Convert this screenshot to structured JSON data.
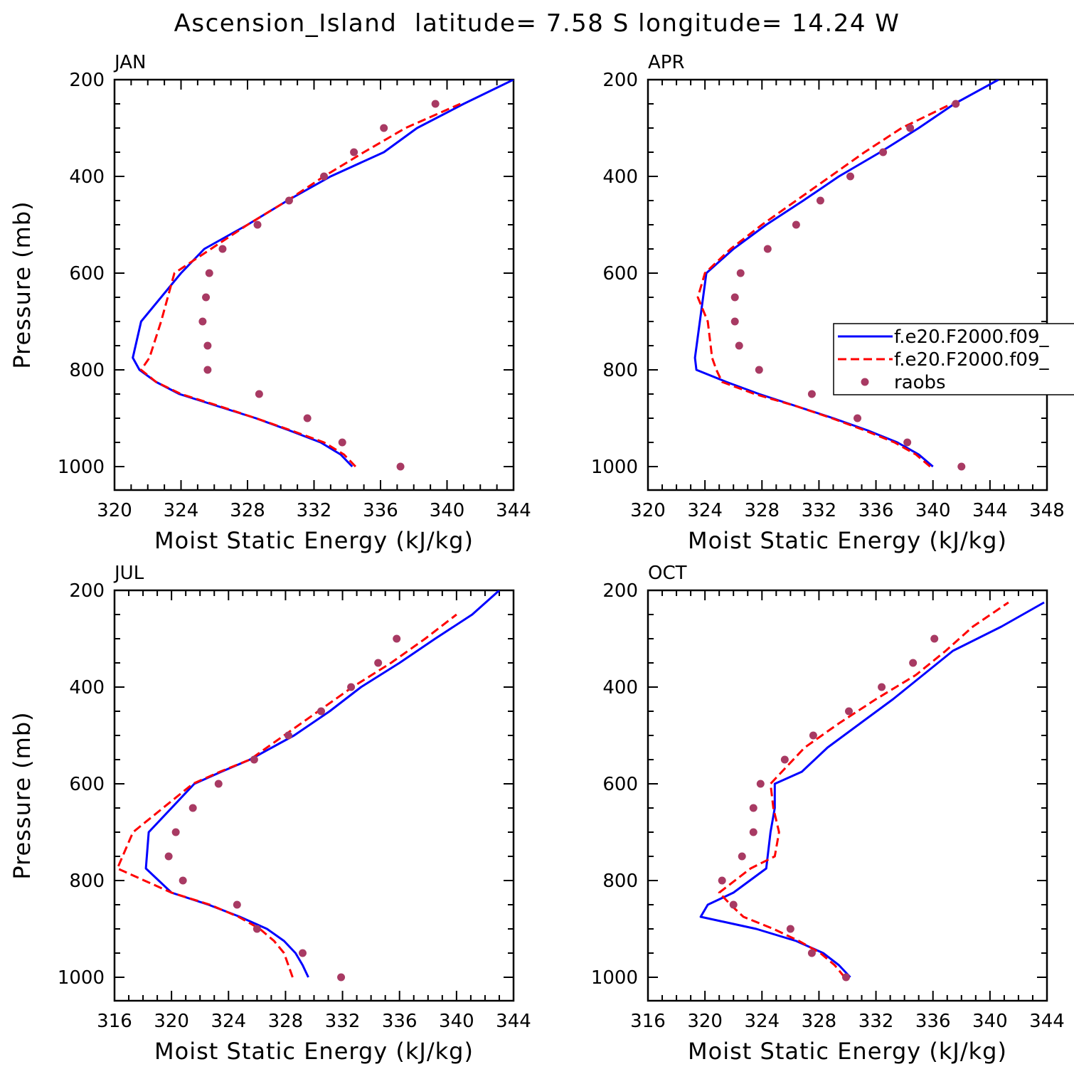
{
  "figure_title": "Ascension_Island  latitude= 7.58 S longitude= 14.24 W",
  "legend": {
    "entries": [
      "f.e20.F2000.f09_",
      "f.e20.F2000.f09_",
      "raobs"
    ]
  },
  "colors": {
    "model_a": "#0000ff",
    "model_b": "#ff0000",
    "raobs": "#a83a63"
  },
  "chart_data": [
    {
      "type": "line",
      "panel_label": "JAN",
      "xlabel": "Moist Static Energy (kJ/kg)",
      "ylabel": "Pressure (mb)",
      "xlim": [
        320,
        344
      ],
      "ylim": [
        1000,
        200
      ],
      "x_ticks": [
        320,
        324,
        328,
        332,
        336,
        340,
        344
      ],
      "y_ticks": [
        200,
        400,
        600,
        800,
        1000
      ],
      "legend_shown": false,
      "series": [
        {
          "style": "solid-blue",
          "x": [
            334.3,
            333.6,
            332.4,
            330.5,
            328.5,
            326.2,
            323.9,
            322.5,
            321.5,
            321.1,
            321.6,
            324.0,
            325.4,
            328.0,
            330.4,
            333.0,
            336.2,
            338.2,
            341.0,
            344.0
          ],
          "y": [
            1000,
            975,
            950,
            925,
            900,
            875,
            850,
            825,
            800,
            775,
            700,
            600,
            550,
            500,
            450,
            400,
            350,
            300,
            250,
            200
          ]
        },
        {
          "style": "dashed-red",
          "x": [
            334.5,
            333.8,
            332.6,
            330.6,
            328.5,
            326.3,
            324.0,
            322.5,
            321.6,
            322.1,
            322.8,
            323.6,
            325.8,
            328.0,
            330.4,
            332.6,
            335.0,
            337.5,
            340.8
          ],
          "y": [
            1000,
            975,
            950,
            925,
            900,
            875,
            850,
            825,
            800,
            775,
            700,
            600,
            550,
            500,
            450,
            400,
            350,
            300,
            250
          ]
        },
        {
          "style": "raobs",
          "x": [
            337.2,
            333.7,
            331.6,
            328.7,
            325.6,
            325.6,
            325.3,
            325.5,
            325.7,
            326.5,
            328.6,
            330.5,
            332.6,
            334.4,
            336.2,
            339.3
          ],
          "y": [
            1000,
            950,
            900,
            850,
            800,
            750,
            700,
            650,
            600,
            550,
            500,
            450,
            400,
            350,
            300,
            250
          ]
        }
      ]
    },
    {
      "type": "line",
      "panel_label": "APR",
      "xlabel": "Moist Static Energy (kJ/kg)",
      "ylabel": "",
      "xlim": [
        320,
        348
      ],
      "ylim": [
        1000,
        200
      ],
      "x_ticks": [
        320,
        324,
        328,
        332,
        336,
        340,
        344,
        348
      ],
      "y_ticks": [
        200,
        400,
        600,
        800,
        1000
      ],
      "legend_shown": true,
      "series": [
        {
          "style": "solid-blue",
          "x": [
            340.0,
            339.0,
            337.5,
            335.4,
            333.0,
            330.4,
            327.8,
            325.5,
            323.4,
            323.3,
            324.1,
            326.0,
            328.3,
            330.9,
            333.4,
            336.3,
            339.0,
            341.5,
            344.6
          ],
          "y": [
            1000,
            975,
            950,
            925,
            900,
            875,
            850,
            825,
            800,
            775,
            600,
            550,
            500,
            450,
            400,
            350,
            300,
            250,
            200
          ]
        },
        {
          "style": "dashed-red",
          "x": [
            339.8,
            338.8,
            337.3,
            335.2,
            332.9,
            330.4,
            327.5,
            325.2,
            324.8,
            324.5,
            324.2,
            323.5,
            324.0,
            325.8,
            328.0,
            330.4,
            332.8,
            335.2,
            337.8,
            341.3
          ],
          "y": [
            1000,
            975,
            950,
            925,
            900,
            875,
            850,
            825,
            800,
            775,
            700,
            650,
            600,
            550,
            500,
            450,
            400,
            350,
            300,
            250
          ]
        },
        {
          "style": "raobs",
          "x": [
            342.0,
            338.2,
            334.7,
            331.5,
            327.8,
            326.4,
            326.1,
            326.1,
            326.5,
            328.4,
            330.4,
            332.1,
            334.2,
            336.5,
            338.4,
            341.6
          ],
          "y": [
            1000,
            950,
            900,
            850,
            800,
            750,
            700,
            650,
            600,
            550,
            500,
            450,
            400,
            350,
            300,
            250
          ]
        }
      ]
    },
    {
      "type": "line",
      "panel_label": "JUL",
      "xlabel": "Moist Static Energy (kJ/kg)",
      "ylabel": "Pressure (mb)",
      "xlim": [
        316,
        344
      ],
      "ylim": [
        1000,
        200
      ],
      "x_ticks": [
        316,
        320,
        324,
        328,
        332,
        336,
        340,
        344
      ],
      "y_ticks": [
        200,
        400,
        600,
        800,
        1000
      ],
      "legend_shown": false,
      "series": [
        {
          "style": "solid-blue",
          "x": [
            329.6,
            329.2,
            328.7,
            327.9,
            326.7,
            324.8,
            322.6,
            320.0,
            318.2,
            318.4,
            321.6,
            323.5,
            325.5,
            328.6,
            331.1,
            333.3,
            336.0,
            338.5,
            341.1,
            343.0
          ],
          "y": [
            1000,
            975,
            950,
            925,
            900,
            875,
            850,
            825,
            775,
            700,
            600,
            575,
            550,
            500,
            450,
            400,
            350,
            300,
            250,
            200
          ]
        },
        {
          "style": "dashed-red",
          "x": [
            328.5,
            328.2,
            327.9,
            327.2,
            326.2,
            324.7,
            322.7,
            320.0,
            316.2,
            317.3,
            321.5,
            323.4,
            325.5,
            327.9,
            330.3,
            332.7,
            335.4,
            337.8,
            340.0
          ],
          "y": [
            1000,
            975,
            950,
            925,
            900,
            875,
            850,
            825,
            775,
            700,
            600,
            575,
            550,
            500,
            450,
            400,
            350,
            300,
            250
          ]
        },
        {
          "style": "raobs",
          "x": [
            331.9,
            329.2,
            326.0,
            324.6,
            320.8,
            319.8,
            320.3,
            321.5,
            323.3,
            325.8,
            328.2,
            330.5,
            332.6,
            334.5,
            335.8
          ],
          "y": [
            1000,
            950,
            900,
            850,
            800,
            750,
            700,
            650,
            600,
            550,
            500,
            450,
            400,
            350,
            300
          ]
        }
      ]
    },
    {
      "type": "line",
      "panel_label": "OCT",
      "xlabel": "Moist Static Energy (kJ/kg)",
      "ylabel": "",
      "xlim": [
        316,
        344
      ],
      "ylim": [
        1000,
        200
      ],
      "x_ticks": [
        316,
        320,
        324,
        328,
        332,
        336,
        340,
        344
      ],
      "y_ticks": [
        200,
        400,
        600,
        800,
        1000
      ],
      "legend_shown": false,
      "series": [
        {
          "style": "solid-blue",
          "x": [
            330.2,
            329.4,
            328.3,
            326.4,
            323.6,
            319.7,
            320.2,
            322.0,
            324.3,
            324.6,
            324.9,
            324.9,
            326.8,
            328.6,
            330.9,
            333.2,
            335.3,
            337.4,
            340.8,
            343.8
          ],
          "y": [
            1000,
            975,
            950,
            925,
            900,
            875,
            850,
            825,
            775,
            700,
            650,
            600,
            575,
            525,
            475,
            425,
            375,
            325,
            275,
            225
          ]
        },
        {
          "style": "dashed-red",
          "x": [
            329.8,
            329.1,
            328.1,
            326.6,
            324.8,
            322.7,
            321.8,
            321.0,
            323.2,
            324.9,
            325.2,
            324.8,
            324.6,
            325.4,
            327.0,
            329.4,
            332.0,
            334.8,
            336.9,
            338.8,
            341.3
          ],
          "y": [
            1000,
            975,
            950,
            925,
            900,
            875,
            850,
            825,
            775,
            750,
            700,
            650,
            600,
            575,
            525,
            475,
            425,
            375,
            325,
            275,
            225
          ]
        },
        {
          "style": "raobs",
          "x": [
            329.9,
            327.5,
            326.0,
            322.0,
            321.2,
            322.6,
            323.4,
            323.4,
            323.9,
            325.6,
            327.6,
            330.1,
            332.4,
            334.6,
            336.1
          ],
          "y": [
            1000,
            950,
            900,
            850,
            800,
            750,
            700,
            650,
            600,
            550,
            500,
            450,
            400,
            350,
            300
          ]
        }
      ]
    }
  ]
}
